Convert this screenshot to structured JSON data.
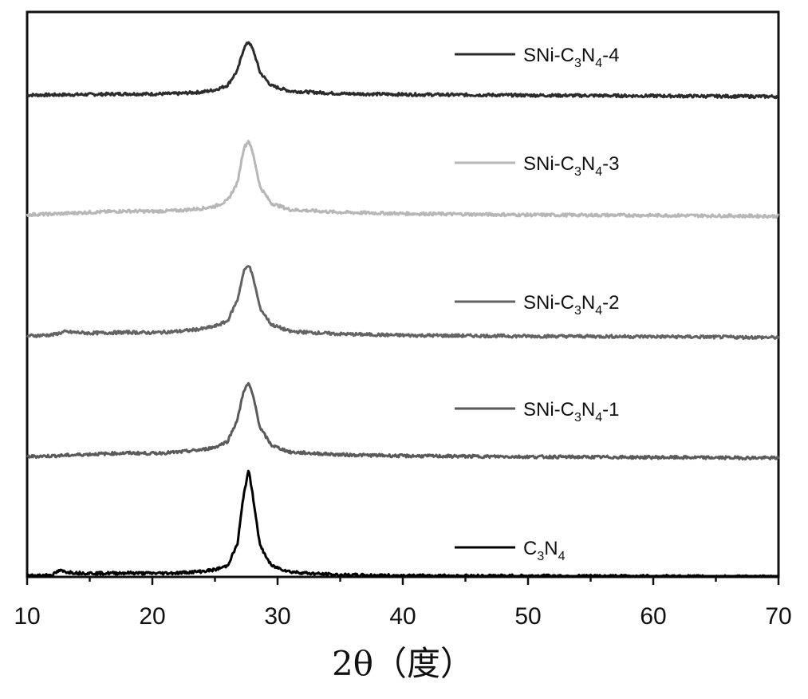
{
  "chart_data": {
    "type": "line",
    "title": "",
    "xlabel": "2θ（度）",
    "ylabel": "",
    "xlim": [
      10,
      70
    ],
    "xticks": [
      10,
      20,
      30,
      40,
      50,
      60,
      70
    ],
    "y_axis_ticks": false,
    "grid": false,
    "legend_position": "right, beside each trace",
    "peak_position_2theta": 27.7,
    "series": [
      {
        "name_parts": [
          "SNi-C",
          "3",
          "N",
          "4",
          "-4"
        ],
        "color": "#2b2b2b",
        "x": [
          10,
          12,
          15,
          18,
          20,
          22,
          24,
          25,
          26,
          26.8,
          27.3,
          27.7,
          28.1,
          28.6,
          29.5,
          31,
          35,
          40,
          50,
          60,
          70
        ],
        "y": [
          0.55,
          0.6,
          0.7,
          0.85,
          0.8,
          0.9,
          1.3,
          1.8,
          2.9,
          6.5,
          11.8,
          13.5,
          11.0,
          6.0,
          2.8,
          1.5,
          0.9,
          0.7,
          0.5,
          0.35,
          0.2
        ]
      },
      {
        "name_parts": [
          "SNi-C",
          "3",
          "N",
          "4",
          "-3"
        ],
        "color": "#b7b7b7",
        "x": [
          10,
          12,
          15,
          18,
          20,
          22,
          24,
          25,
          26,
          26.8,
          27.3,
          27.7,
          28.1,
          28.6,
          29.5,
          31,
          35,
          40,
          50,
          60,
          70
        ],
        "y": [
          0.55,
          0.7,
          1.1,
          1.4,
          1.3,
          1.5,
          2.0,
          2.5,
          3.8,
          8.0,
          16.0,
          17.8,
          14.0,
          7.0,
          3.2,
          1.7,
          1.1,
          0.8,
          0.5,
          0.4,
          0.2
        ]
      },
      {
        "name_parts": [
          "SNi-C",
          "3",
          "N",
          "4",
          "-2"
        ],
        "color": "#636363",
        "x": [
          10,
          12,
          13,
          15,
          18,
          20,
          22,
          24,
          25,
          26,
          26.8,
          27.3,
          27.7,
          28.1,
          28.6,
          29.5,
          31,
          35,
          40,
          50,
          60,
          70
        ],
        "y": [
          0.55,
          0.8,
          1.5,
          1.2,
          1.4,
          1.3,
          1.6,
          2.2,
          2.8,
          4.0,
          9.0,
          15.5,
          17.2,
          13.5,
          7.0,
          3.2,
          1.6,
          1.0,
          0.7,
          0.5,
          0.4,
          0.2
        ]
      },
      {
        "name_parts": [
          "SNi-C",
          "3",
          "N",
          "4",
          "-1"
        ],
        "color": "#5a5a5a",
        "x": [
          10,
          12,
          15,
          18,
          20,
          22,
          24,
          25,
          26,
          26.8,
          27.3,
          27.7,
          28.1,
          28.6,
          29.5,
          31,
          35,
          40,
          50,
          60,
          70
        ],
        "y": [
          0.55,
          0.7,
          1.1,
          1.4,
          1.3,
          1.6,
          2.2,
          2.8,
          4.2,
          9.5,
          16.5,
          18.2,
          14.5,
          7.5,
          3.3,
          1.6,
          1.0,
          0.7,
          0.5,
          0.35,
          0.2
        ]
      },
      {
        "name_parts": [
          "C",
          "3",
          "N",
          "4",
          ""
        ],
        "color": "#000000",
        "x": [
          10,
          12,
          12.6,
          13,
          14,
          16,
          18,
          20,
          22,
          24,
          25,
          26,
          26.8,
          27.3,
          27.7,
          28.1,
          28.6,
          29.5,
          31,
          33,
          35,
          40,
          50,
          60,
          70
        ],
        "y": [
          0.5,
          0.7,
          1.8,
          1.5,
          1.2,
          1.1,
          1.2,
          1.1,
          1.2,
          1.6,
          2.0,
          3.0,
          8.5,
          21.0,
          27.0,
          19.0,
          8.0,
          3.0,
          1.5,
          1.0,
          0.7,
          0.5,
          0.45,
          0.35,
          0.2
        ]
      }
    ]
  }
}
